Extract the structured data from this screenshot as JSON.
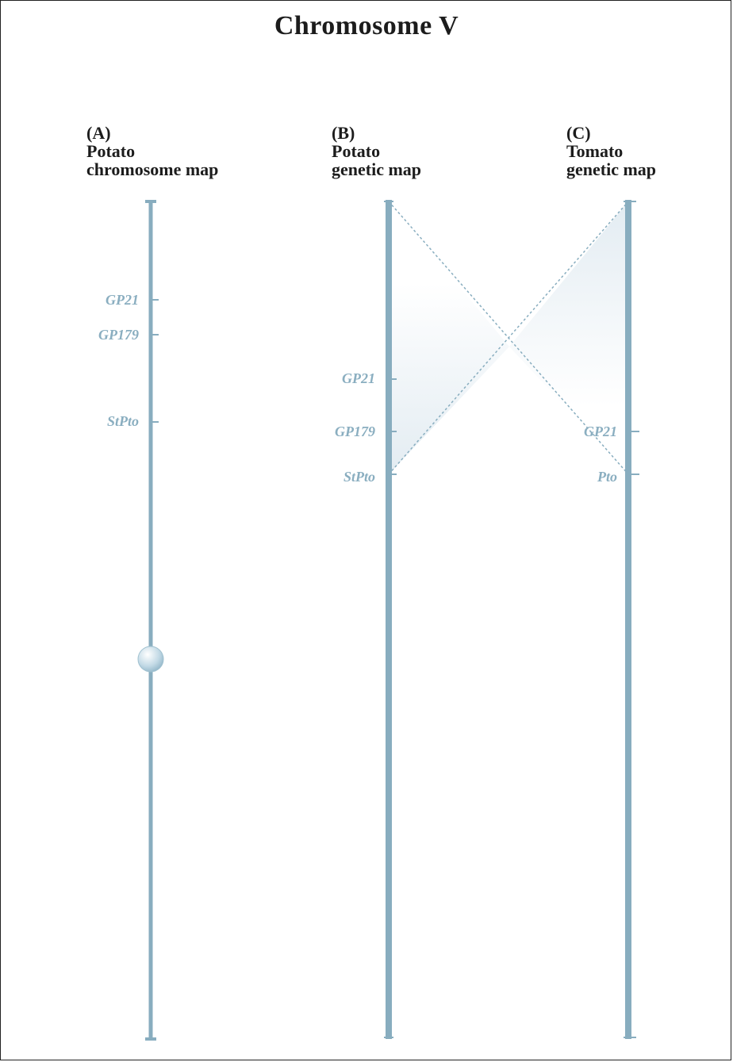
{
  "title": "Chromosome V",
  "panels": [
    {
      "id": "A",
      "letter": "(A)",
      "line1": "Potato",
      "line2": "chromosome map"
    },
    {
      "id": "B",
      "letter": "(B)",
      "line1": "Potato",
      "line2": "genetic map"
    },
    {
      "id": "C",
      "letter": "(C)",
      "line1": "Tomato",
      "line2": "genetic map"
    }
  ],
  "markers": {
    "A": [
      "GP21",
      "GP179",
      "StPto"
    ],
    "B": [
      "GP21",
      "GP179",
      "StPto"
    ],
    "C": [
      "GP21",
      "Pto"
    ]
  },
  "colors": {
    "chromosome": "#88adbf",
    "label": "#8aaec0",
    "heading": "#1c1c1c",
    "centromere": "#b9d3e0"
  }
}
